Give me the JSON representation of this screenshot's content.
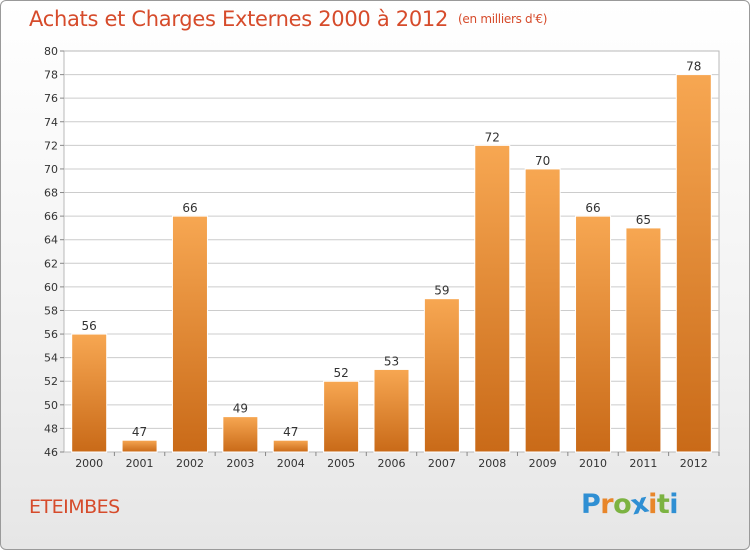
{
  "header": {
    "title": "Achats et Charges Externes 2000 à 2012",
    "unit": "(en milliers d'€)"
  },
  "footer": {
    "commune": "ETEIMBES",
    "brand": "Proxiti",
    "brand_letters": [
      {
        "char": "P",
        "color": "#2f8fd3"
      },
      {
        "char": "r",
        "color": "#e8862a"
      },
      {
        "char": "o",
        "color": "#7cb342"
      },
      {
        "char": "x",
        "color": "#2f8fd3"
      },
      {
        "char": "i",
        "color": "#e8862a"
      },
      {
        "char": "t",
        "color": "#7cb342"
      },
      {
        "char": "i",
        "color": "#2f8fd3"
      }
    ]
  },
  "chart_data": {
    "type": "bar",
    "title": "Achats et Charges Externes 2000 à 2012",
    "subtitle": "(en milliers d'€)",
    "categories": [
      "2000",
      "2001",
      "2002",
      "2003",
      "2004",
      "2005",
      "2006",
      "2007",
      "2008",
      "2009",
      "2010",
      "2011",
      "2012"
    ],
    "values": [
      56,
      47,
      66,
      49,
      47,
      52,
      53,
      59,
      72,
      70,
      66,
      65,
      78
    ],
    "ylim": [
      46,
      80
    ],
    "yticks": [
      46,
      48,
      50,
      52,
      54,
      56,
      58,
      60,
      62,
      64,
      66,
      68,
      70,
      72,
      74,
      76,
      78,
      80
    ],
    "grid": true,
    "bar_color_top": "#f7a752",
    "bar_color_bottom": "#c96a18",
    "label_color": "#333333",
    "grid_color": "#cccccc"
  }
}
